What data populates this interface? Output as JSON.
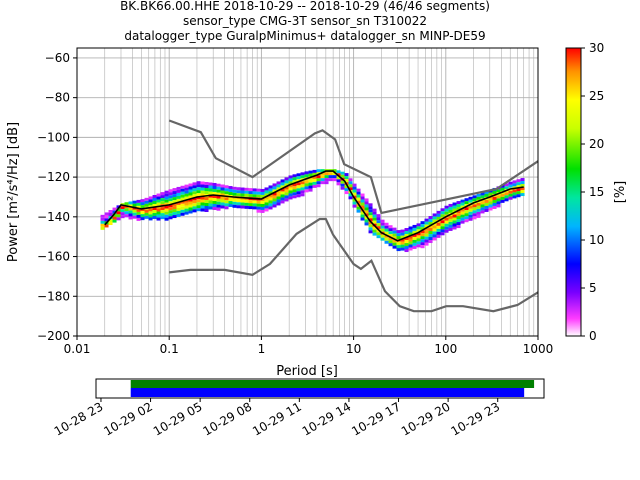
{
  "title_lines": [
    "BK.BK66.00.HHE   2018-10-29 -- 2018-10-29  (46/46 segments)",
    "sensor_type CMG-3T sensor_sn T310022",
    "datalogger_type GuralpMinimus+ datalogger_sn MINP-DE59"
  ],
  "chart_data": {
    "type": "heatmap",
    "title": "BK.BK66.00.HHE   2018-10-29 -- 2018-10-29  (46/46 segments)",
    "xlabel": "Period [s]",
    "ylabel": "Power [m²/s⁴/Hz] [dB]",
    "x_scale": "log",
    "xlim": [
      0.01,
      1000
    ],
    "ylim": [
      -200,
      -55
    ],
    "grid": true,
    "x_ticks": [
      0.01,
      0.1,
      1,
      10,
      100,
      1000
    ],
    "x_tick_labels": [
      "0.01",
      "0.1",
      "1",
      "10",
      "100",
      "1000"
    ],
    "y_ticks": [
      -200,
      -180,
      -160,
      -140,
      -120,
      -100,
      -80,
      -60
    ],
    "y_tick_labels": [
      "−200",
      "−180",
      "−160",
      "−140",
      "−120",
      "−100",
      "−80",
      "−60"
    ],
    "colorbar": {
      "label": "[%]",
      "range": [
        0,
        30
      ],
      "ticks": [
        0,
        5,
        10,
        15,
        20,
        25,
        30
      ],
      "tick_labels": [
        "0",
        "5",
        "10",
        "15",
        "20",
        "25",
        "30"
      ]
    },
    "series": [
      {
        "name": "high noise model",
        "color": "#666666",
        "x": [
          0.1,
          0.22,
          0.32,
          0.8,
          3.8,
          4.6,
          6.3,
          7.9,
          15.4,
          20,
          354.8,
          1000
        ],
        "y": [
          -91.5,
          -97.4,
          -110.5,
          -120,
          -98,
          -96.5,
          -101,
          -113.5,
          -120,
          -138,
          -126,
          -112
        ]
      },
      {
        "name": "low noise model",
        "color": "#666666",
        "x": [
          0.1,
          0.17,
          0.4,
          0.8,
          1.24,
          2.4,
          4.3,
          5,
          6,
          10,
          12,
          15.6,
          21.9,
          31.6,
          45,
          70,
          101,
          154,
          328,
          600,
          1000
        ],
        "y": [
          -168,
          -166.7,
          -166.7,
          -169.2,
          -163.7,
          -148.6,
          -141.1,
          -141.1,
          -149,
          -163.8,
          -166.2,
          -162.1,
          -177.5,
          -185,
          -187.5,
          -187.5,
          -185,
          -185,
          -187.5,
          -184.4,
          -178
        ]
      },
      {
        "name": "mean",
        "color": "#000000",
        "x": [
          0.02,
          0.025,
          0.03,
          0.05,
          0.1,
          0.2,
          0.3,
          0.5,
          1,
          2,
          3,
          4,
          5,
          6,
          8,
          10,
          15,
          20,
          30,
          50,
          100,
          200,
          300,
          500,
          700
        ],
        "y": [
          -144,
          -139,
          -134,
          -136,
          -134,
          -130,
          -129,
          -130,
          -131,
          -124,
          -121,
          -119,
          -117,
          -117,
          -122,
          -130,
          -142,
          -148,
          -152,
          -148,
          -140,
          -133,
          -130,
          -126,
          -125
        ]
      }
    ],
    "heatmap_band": {
      "x": [
        0.018,
        0.025,
        0.03,
        0.05,
        0.1,
        0.2,
        0.3,
        0.5,
        1,
        2,
        3,
        4,
        5,
        6,
        8,
        10,
        15,
        20,
        30,
        50,
        100,
        200,
        300,
        500,
        700
      ],
      "y_low": [
        -146,
        -142,
        -140,
        -141,
        -141,
        -137,
        -136,
        -134,
        -137,
        -131,
        -127,
        -124,
        -122,
        -121,
        -128,
        -135,
        -148,
        -152,
        -157,
        -155,
        -147,
        -140,
        -136,
        -130,
        -129
      ],
      "y_high": [
        -139,
        -135,
        -133,
        -131,
        -126,
        -122,
        -123,
        -125,
        -126,
        -119,
        -117,
        -116,
        -116,
        -116,
        -118,
        -124,
        -134,
        -142,
        -147,
        -143,
        -134,
        -129,
        -126,
        -122,
        -120
      ]
    }
  },
  "timeline": {
    "tick_labels": [
      "10-28 23",
      "10-29 02",
      "10-29 05",
      "10-29 08",
      "10-29 11",
      "10-29 14",
      "10-29 17",
      "10-29 20",
      "10-29 23"
    ],
    "tick_hours": [
      -1,
      2,
      5,
      8,
      11,
      14,
      17,
      20,
      23
    ],
    "range_hours": [
      -1.3,
      25.8
    ],
    "coverage_bar_green": [
      0.8,
      25.2
    ],
    "coverage_bar_blue": [
      0.8,
      24.6
    ],
    "green_color": "#008000",
    "blue_color": "#0000ff"
  }
}
